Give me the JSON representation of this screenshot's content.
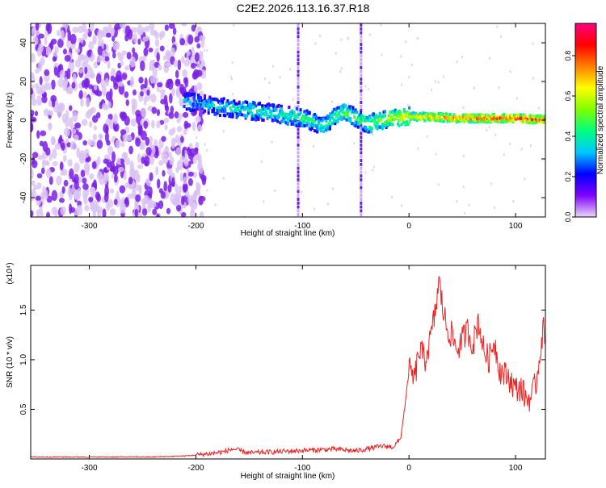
{
  "title": "C2E2.2026.113.16.37.R18",
  "colorbar": {
    "label": "Normalized spectral amplitude",
    "ticks": [
      0.0,
      0.2,
      0.4,
      0.6,
      0.8
    ],
    "tick_labels": [
      "0.0",
      "0.2",
      "0.4",
      "0.6",
      "0.8"
    ],
    "range": [
      0,
      0.96
    ],
    "colors": [
      "#e8d8f5",
      "#8000ff",
      "#0000ff",
      "#00c8ff",
      "#00ff80",
      "#80ff00",
      "#ffff00",
      "#ff8000",
      "#ff0000",
      "#ff0080"
    ]
  },
  "chart_data": [
    {
      "type": "heatmap",
      "name": "spectrogram",
      "xlabel": "Height of straight line (km)",
      "ylabel": "Frequency (Hz)",
      "xlim": [
        -355,
        128
      ],
      "ylim": [
        -50,
        50
      ],
      "x_ticks": [
        -300,
        -200,
        -100,
        0,
        100
      ],
      "x_tick_labels": [
        "-300",
        "-200",
        "-100",
        "0",
        "100"
      ],
      "y_ticks": [
        -40,
        -20,
        0,
        20,
        40
      ],
      "y_tick_labels": [
        "-40",
        "-20",
        "0",
        "20",
        "40"
      ],
      "features": {
        "noise_region_x": [
          -355,
          -212
        ],
        "ridge": {
          "x": [
            -212,
            -180,
            -150,
            -120,
            -100,
            -80,
            -70,
            -60,
            -50,
            -40,
            -20,
            0,
            50,
            100,
            128
          ],
          "freq": [
            10,
            7,
            5,
            3,
            1,
            -3,
            2,
            4,
            1,
            -2,
            1,
            2,
            1,
            1,
            0
          ],
          "amplitude": [
            0.3,
            0.35,
            0.4,
            0.4,
            0.45,
            0.4,
            0.45,
            0.5,
            0.45,
            0.5,
            0.55,
            0.65,
            0.8,
            0.85,
            0.85
          ]
        },
        "vertical_streaks_x": [
          -104,
          -45
        ]
      }
    },
    {
      "type": "line",
      "name": "snr",
      "color": "#ee2222",
      "xlabel": "Height of straight line (km)",
      "ylabel": "SNR (10 * v/v)",
      "y_multiplier_label": "(x10⁴)",
      "xlim": [
        -355,
        128
      ],
      "ylim": [
        0,
        1.95
      ],
      "x_ticks": [
        -300,
        -200,
        -100,
        0,
        100
      ],
      "x_tick_labels": [
        "-300",
        "-200",
        "-100",
        "0",
        "100"
      ],
      "y_ticks": [
        0.5,
        1.0,
        1.5
      ],
      "y_tick_labels": [
        "0.5",
        "1.0",
        "1.5"
      ],
      "x": [
        -355,
        -320,
        -280,
        -240,
        -210,
        -190,
        -175,
        -165,
        -150,
        -130,
        -110,
        -90,
        -70,
        -50,
        -35,
        -25,
        -15,
        -8,
        -3,
        0,
        5,
        10,
        15,
        20,
        25,
        28,
        32,
        36,
        40,
        45,
        50,
        55,
        60,
        65,
        70,
        75,
        80,
        85,
        90,
        95,
        100,
        105,
        110,
        115,
        120,
        123,
        126,
        128
      ],
      "y": [
        0.02,
        0.02,
        0.02,
        0.02,
        0.03,
        0.05,
        0.07,
        0.1,
        0.06,
        0.07,
        0.08,
        0.09,
        0.1,
        0.08,
        0.11,
        0.13,
        0.12,
        0.2,
        0.6,
        0.9,
        0.8,
        1.1,
        1.0,
        1.2,
        1.5,
        1.8,
        1.5,
        1.3,
        1.25,
        1.1,
        1.2,
        1.3,
        1.15,
        1.4,
        1.1,
        1.0,
        1.2,
        0.9,
        0.85,
        0.8,
        0.7,
        0.72,
        0.6,
        0.62,
        0.8,
        1.1,
        1.3,
        1.25
      ]
    }
  ]
}
